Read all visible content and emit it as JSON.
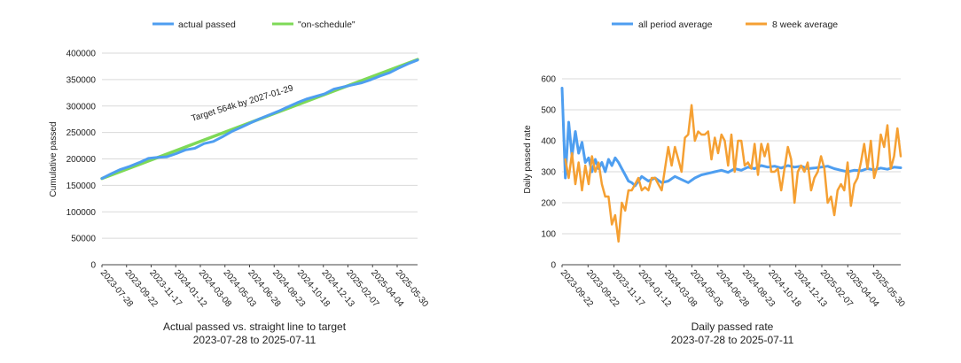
{
  "chart_data": [
    {
      "type": "line",
      "title": "Actual passed vs. straight line to target",
      "subtitle": "2023-07-28 to 2025-07-11",
      "ylabel": "Cumulative passed",
      "xlabel": "",
      "ylim": [
        0,
        400000
      ],
      "yticks": [
        "0",
        "50000",
        "100000",
        "150000",
        "200000",
        "250000",
        "300000",
        "350000",
        "400000"
      ],
      "ytick_values": [
        0,
        50000,
        100000,
        150000,
        200000,
        250000,
        300000,
        350000,
        400000
      ],
      "x_tick_labels": [
        "2023-07-28",
        "2023-09-22",
        "2023-11-17",
        "2024-01-12",
        "2024-03-08",
        "2024-05-03",
        "2024-06-28",
        "2024-08-23",
        "2024-10-18",
        "2024-12-13",
        "2025-02-07",
        "2025-04-04",
        "2025-05-30"
      ],
      "x_range": [
        "2023-07-28",
        "2025-07-11"
      ],
      "grid": true,
      "legend_position": "top",
      "annotation": "Target 564k by 2027-01-29",
      "series": [
        {
          "name": "actual passed",
          "color": "#4e9ef0",
          "x": [
            "2023-07-28",
            "2023-08-18",
            "2023-09-08",
            "2023-09-29",
            "2023-10-20",
            "2023-11-10",
            "2023-12-01",
            "2023-12-22",
            "2024-01-12",
            "2024-02-02",
            "2024-02-23",
            "2024-03-15",
            "2024-04-05",
            "2024-04-26",
            "2024-05-17",
            "2024-06-07",
            "2024-06-28",
            "2024-07-19",
            "2024-08-09",
            "2024-08-30",
            "2024-09-20",
            "2024-10-11",
            "2024-11-01",
            "2024-11-22",
            "2024-12-13",
            "2025-01-03",
            "2025-01-24",
            "2025-02-14",
            "2025-03-07",
            "2025-03-28",
            "2025-04-18",
            "2025-05-09",
            "2025-05-30",
            "2025-06-20",
            "2025-07-11"
          ],
          "values": [
            163000,
            172000,
            180000,
            186000,
            193000,
            201000,
            203000,
            204000,
            210000,
            217000,
            220000,
            229000,
            233000,
            242000,
            252000,
            260000,
            268000,
            276000,
            283000,
            290000,
            298000,
            306000,
            313000,
            318000,
            323000,
            332000,
            336000,
            340000,
            344000,
            350000,
            357000,
            363000,
            372000,
            380000,
            387000
          ]
        },
        {
          "name": "\"on-schedule\"",
          "color": "#7ed957",
          "x": [
            "2023-07-28",
            "2025-07-11"
          ],
          "values": [
            163000,
            388000
          ]
        }
      ]
    },
    {
      "type": "line",
      "title": "Daily passed rate",
      "subtitle": "2023-07-28 to 2025-07-11",
      "ylabel": "Daily passed rate",
      "xlabel": "",
      "ylim": [
        0,
        600
      ],
      "yticks": [
        "0",
        "100",
        "200",
        "300",
        "400",
        "500",
        "600"
      ],
      "ytick_values": [
        0,
        100,
        200,
        300,
        400,
        500,
        600
      ],
      "x_tick_labels": [
        "2023-09-22",
        "2023-09-22",
        "2023-11-17",
        "2024-01-12",
        "2024-03-08",
        "2024-05-03",
        "2024-06-28",
        "2024-08-23",
        "2024-10-18",
        "2024-12-13",
        "2025-02-07",
        "2025-04-04",
        "2025-05-30"
      ],
      "x_range": [
        "2023-07-28",
        "2025-07-11"
      ],
      "grid": true,
      "legend_position": "top",
      "series": [
        {
          "name": "all period average",
          "color": "#4e9ef0",
          "x": [
            "2023-07-28",
            "2023-08-04",
            "2023-08-11",
            "2023-08-18",
            "2023-08-25",
            "2023-09-01",
            "2023-09-08",
            "2023-09-15",
            "2023-09-22",
            "2023-09-29",
            "2023-10-06",
            "2023-10-13",
            "2023-10-20",
            "2023-10-27",
            "2023-11-03",
            "2023-11-10",
            "2023-11-17",
            "2023-11-24",
            "2023-12-01",
            "2023-12-08",
            "2023-12-15",
            "2023-12-22",
            "2023-12-29",
            "2024-01-12",
            "2024-01-26",
            "2024-02-09",
            "2024-02-23",
            "2024-03-08",
            "2024-03-22",
            "2024-04-05",
            "2024-04-19",
            "2024-05-03",
            "2024-05-17",
            "2024-05-31",
            "2024-06-14",
            "2024-06-28",
            "2024-07-12",
            "2024-07-26",
            "2024-08-09",
            "2024-08-23",
            "2024-09-06",
            "2024-09-20",
            "2024-10-04",
            "2024-10-18",
            "2024-11-01",
            "2024-11-15",
            "2024-11-29",
            "2024-12-13",
            "2024-12-27",
            "2025-01-10",
            "2025-01-24",
            "2025-02-07",
            "2025-02-21",
            "2025-03-07",
            "2025-03-21",
            "2025-04-04",
            "2025-04-18",
            "2025-05-02",
            "2025-05-16",
            "2025-05-30",
            "2025-06-13",
            "2025-06-27",
            "2025-07-11"
          ],
          "values": [
            570,
            280,
            460,
            350,
            430,
            360,
            395,
            330,
            345,
            300,
            340,
            310,
            330,
            300,
            340,
            320,
            345,
            330,
            310,
            290,
            270,
            265,
            255,
            285,
            270,
            280,
            265,
            270,
            285,
            275,
            265,
            280,
            290,
            295,
            300,
            305,
            298,
            310,
            305,
            315,
            310,
            320,
            315,
            318,
            312,
            320,
            315,
            318,
            310,
            312,
            315,
            318,
            310,
            305,
            300,
            305,
            303,
            310,
            306,
            312,
            308,
            315,
            313
          ]
        },
        {
          "name": "8 week average",
          "color": "#f5a033",
          "x": [
            "2023-08-04",
            "2023-08-11",
            "2023-08-18",
            "2023-08-25",
            "2023-09-01",
            "2023-09-08",
            "2023-09-15",
            "2023-09-22",
            "2023-09-29",
            "2023-10-06",
            "2023-10-13",
            "2023-10-20",
            "2023-10-27",
            "2023-11-03",
            "2023-11-10",
            "2023-11-17",
            "2023-11-24",
            "2023-12-01",
            "2023-12-08",
            "2023-12-15",
            "2023-12-22",
            "2023-12-29",
            "2024-01-05",
            "2024-01-12",
            "2024-01-19",
            "2024-01-26",
            "2024-02-02",
            "2024-02-09",
            "2024-02-16",
            "2024-02-23",
            "2024-03-01",
            "2024-03-08",
            "2024-03-15",
            "2024-03-22",
            "2024-03-29",
            "2024-04-05",
            "2024-04-12",
            "2024-04-19",
            "2024-04-26",
            "2024-05-03",
            "2024-05-10",
            "2024-05-17",
            "2024-05-24",
            "2024-05-31",
            "2024-06-07",
            "2024-06-14",
            "2024-06-21",
            "2024-06-28",
            "2024-07-05",
            "2024-07-12",
            "2024-07-19",
            "2024-07-26",
            "2024-08-02",
            "2024-08-09",
            "2024-08-16",
            "2024-08-23",
            "2024-08-30",
            "2024-09-06",
            "2024-09-13",
            "2024-09-20",
            "2024-09-27",
            "2024-10-04",
            "2024-10-11",
            "2024-10-18",
            "2024-10-25",
            "2024-11-01",
            "2024-11-08",
            "2024-11-15",
            "2024-11-22",
            "2024-11-29",
            "2024-12-06",
            "2024-12-13",
            "2024-12-20",
            "2024-12-27",
            "2025-01-03",
            "2025-01-10",
            "2025-01-17",
            "2025-01-24",
            "2025-01-31",
            "2025-02-07",
            "2025-02-14",
            "2025-02-21",
            "2025-02-28",
            "2025-03-07",
            "2025-03-14",
            "2025-03-21",
            "2025-03-28",
            "2025-04-04",
            "2025-04-11",
            "2025-04-18",
            "2025-04-25",
            "2025-05-02",
            "2025-05-09",
            "2025-05-16",
            "2025-05-23",
            "2025-05-30",
            "2025-06-06",
            "2025-06-13",
            "2025-06-20",
            "2025-06-27",
            "2025-07-04",
            "2025-07-11"
          ],
          "values": [
            340,
            280,
            360,
            260,
            330,
            240,
            320,
            260,
            350,
            300,
            330,
            260,
            220,
            220,
            130,
            160,
            75,
            200,
            175,
            240,
            240,
            260,
            280,
            240,
            250,
            240,
            280,
            280,
            260,
            240,
            310,
            380,
            320,
            380,
            340,
            300,
            410,
            420,
            515,
            400,
            430,
            420,
            420,
            430,
            340,
            410,
            360,
            420,
            400,
            320,
            420,
            300,
            400,
            400,
            320,
            330,
            310,
            390,
            290,
            390,
            350,
            390,
            300,
            300,
            310,
            240,
            310,
            380,
            340,
            200,
            300,
            320,
            300,
            330,
            240,
            280,
            300,
            350,
            310,
            200,
            220,
            160,
            240,
            260,
            240,
            330,
            190,
            260,
            280,
            330,
            390,
            310,
            400,
            280,
            320,
            420,
            380,
            450,
            310,
            350,
            440,
            350
          ]
        }
      ]
    }
  ]
}
